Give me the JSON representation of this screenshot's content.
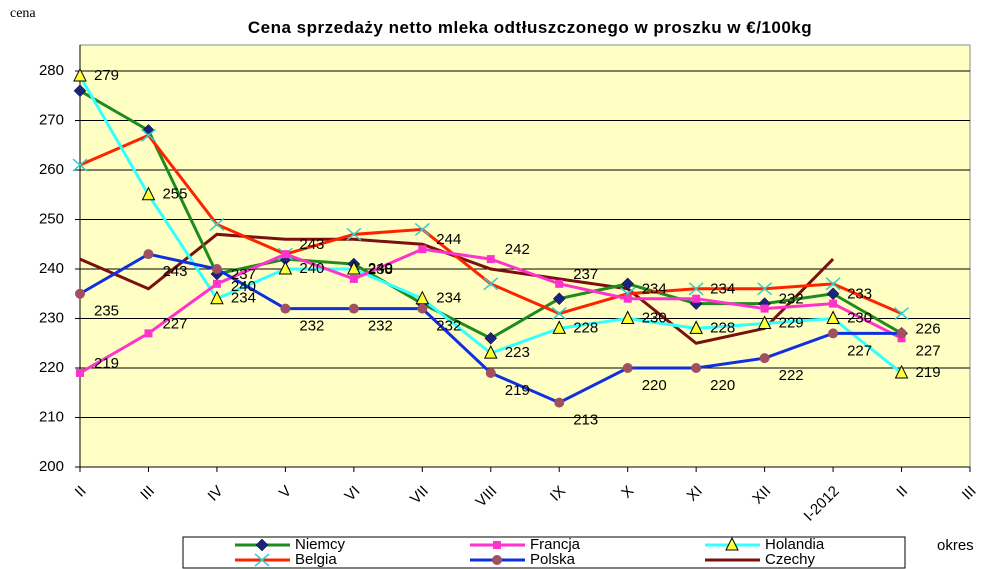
{
  "chart_data": {
    "type": "line",
    "title": "Cena sprzedaży netto mleka odtłuszczonego w proszku w €/100kg",
    "y_label": "cena",
    "x_label": "okres",
    "categories": [
      "II",
      "III",
      "IV",
      "V",
      "VI",
      "VII",
      "VIII",
      "IX",
      "X",
      "XI",
      "XII",
      "I-2012",
      "II",
      "III"
    ],
    "ylim": [
      200,
      280
    ],
    "yticks": [
      200,
      210,
      220,
      230,
      240,
      250,
      260,
      270,
      280
    ],
    "grid": true,
    "series": [
      {
        "name": "Niemcy",
        "color": "#1f8a1f",
        "marker": "diamond",
        "marker_color": "#1a237e",
        "values": [
          276,
          268,
          239,
          242,
          241,
          233,
          226,
          234,
          237,
          233,
          233,
          235,
          227,
          null
        ]
      },
      {
        "name": "Francja",
        "color": "#ff33cc",
        "marker": "square",
        "marker_color": "#ff33cc",
        "labels": true,
        "values": [
          219,
          227,
          237,
          243,
          238,
          244,
          242,
          237,
          234,
          234,
          232,
          233,
          226,
          null
        ]
      },
      {
        "name": "Holandia",
        "color": "#33ffff",
        "marker": "triangle",
        "marker_color": "#ffff33",
        "labels": true,
        "values": [
          279,
          255,
          234,
          240,
          240,
          234,
          223,
          228,
          230,
          228,
          229,
          230,
          219,
          null
        ]
      },
      {
        "name": "Belgia",
        "color": "#ff2200",
        "marker": "x",
        "marker_color": "#33cccc",
        "values": [
          261,
          267,
          249,
          243,
          247,
          248,
          237,
          231,
          235,
          236,
          236,
          237,
          231,
          null
        ]
      },
      {
        "name": "Polska",
        "color": "#1030e0",
        "marker": "circle",
        "marker_color": "#a05060",
        "labels": true,
        "values": [
          235,
          243,
          240,
          232,
          232,
          232,
          219,
          213,
          220,
          220,
          222,
          227,
          227,
          null
        ]
      },
      {
        "name": "Czechy",
        "color": "#7a1010",
        "marker": "none",
        "marker_color": "#7a1010",
        "values": [
          242,
          236,
          247,
          246,
          246,
          245,
          240,
          238,
          236,
          225,
          228,
          242,
          null,
          null
        ]
      }
    ]
  }
}
